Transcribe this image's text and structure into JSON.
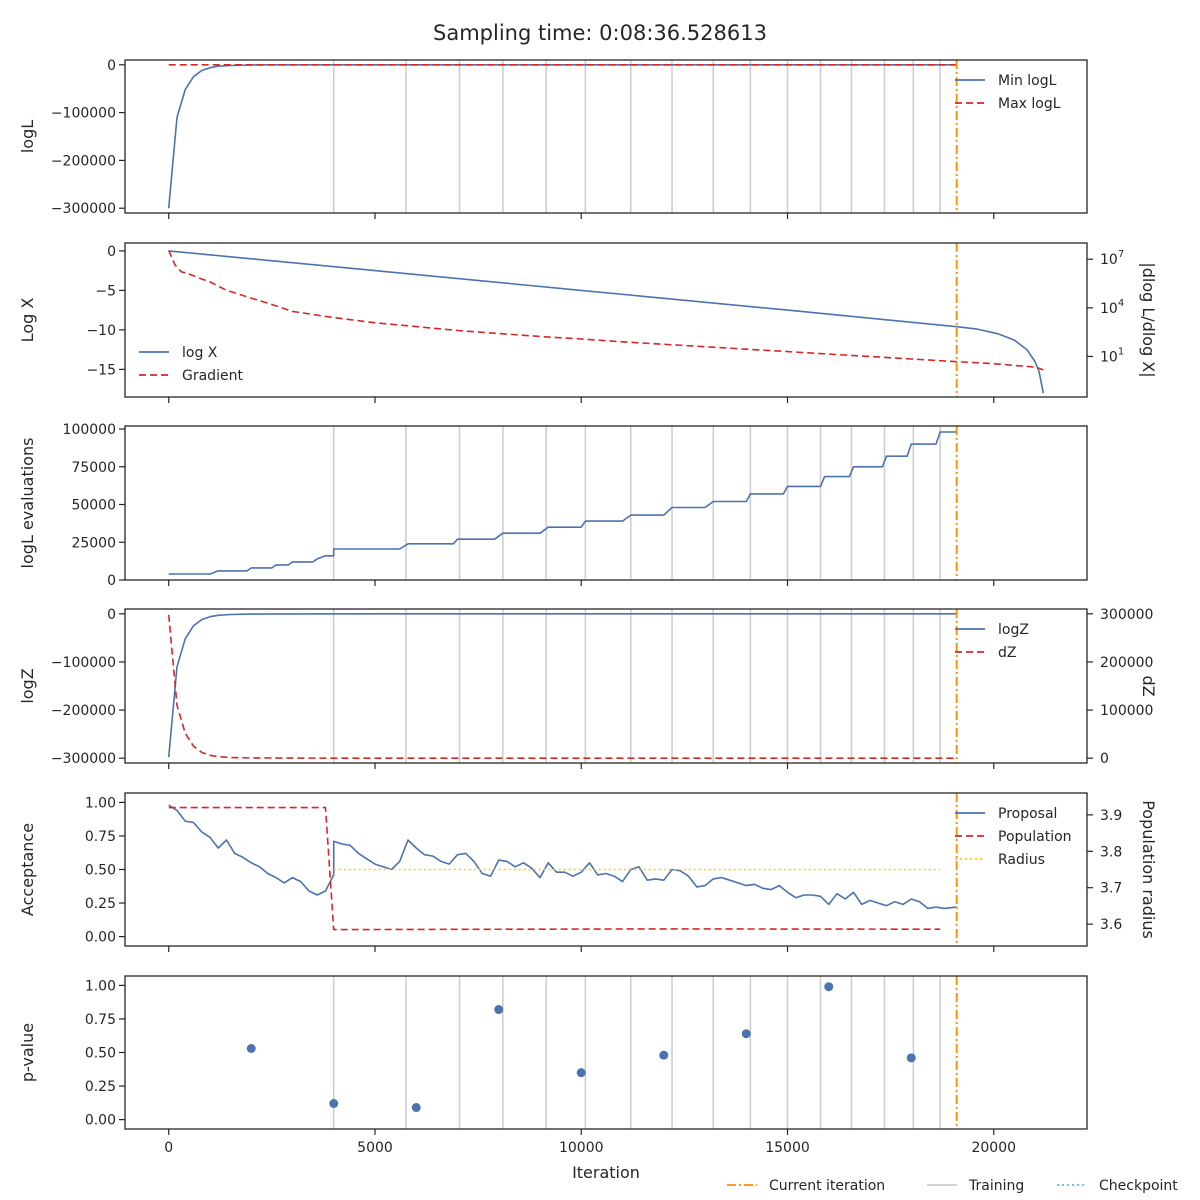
{
  "title": "Sampling time: 0:08:36.528613",
  "colors": {
    "blue": "#4C72B0",
    "red": "#d62728",
    "orange": "#ff8c00",
    "gray": "#cccccc",
    "yellow": "#ffcc00",
    "cyan": "#5bc0de",
    "axis": "#262626"
  },
  "chart_data": [
    {
      "type": "line",
      "panel": "loglikelihood",
      "ylabel": "logL",
      "ylim": [
        -310000,
        10000
      ],
      "yticks": [
        0,
        -100000,
        -200000,
        -300000
      ],
      "ytick_labels": [
        "0",
        "−100000",
        "−200000",
        "−300000"
      ],
      "show_training_lines": true,
      "legend": "upper-right",
      "series": [
        {
          "name": "Min logL",
          "style": "solid",
          "color": "blue",
          "x": [
            0,
            200,
            400,
            600,
            800,
            1000,
            1200,
            1500,
            2000,
            3000,
            5000,
            19100
          ],
          "y": [
            -300000,
            -110000,
            -52000,
            -25000,
            -12000,
            -6000,
            -3000,
            -1500,
            -500,
            -100,
            -10,
            0
          ]
        },
        {
          "name": "Max logL",
          "style": "dashed",
          "color": "red",
          "x": [
            0,
            19100
          ],
          "y": [
            0,
            0
          ]
        }
      ]
    },
    {
      "type": "line",
      "panel": "logX",
      "ylabel": "Log X",
      "ylim": [
        -18.5,
        1
      ],
      "yticks": [
        0,
        -5,
        -10,
        -15
      ],
      "ytick_labels": [
        "0",
        "−5",
        "−10",
        "−15"
      ],
      "y2label": "|dlog L/dlog X|",
      "y2scale": "log",
      "y2ticks": [
        10,
        10000,
        10000000
      ],
      "y2tick_labels": [
        "10^1",
        "10^4",
        "10^7"
      ],
      "y2lim_log10": [
        -1.5,
        8.0
      ],
      "show_training_lines": false,
      "legend": "lower-left",
      "series": [
        {
          "name": "log X",
          "style": "solid",
          "color": "blue",
          "axis": "left",
          "x": [
            0,
            5000,
            10000,
            15000,
            19100,
            19600,
            20100,
            20500,
            20800,
            21000,
            21100,
            21200
          ],
          "y": [
            0,
            -2.5,
            -5.0,
            -7.5,
            -9.6,
            -9.9,
            -10.5,
            -11.3,
            -12.5,
            -14.0,
            -15.3,
            -18
          ]
        },
        {
          "name": "Gradient",
          "style": "dashed",
          "color": "red",
          "axis": "right",
          "x": [
            0,
            150,
            300,
            500,
            800,
            1000,
            1400,
            2000,
            2500,
            3000,
            4000,
            5000,
            6000,
            7000,
            8000,
            9000,
            10000,
            11000,
            12000,
            13000,
            14000,
            15000,
            16000,
            17000,
            18000,
            19000,
            20000,
            21000,
            21200
          ],
          "y": [
            35000000.0,
            4500000.0,
            1700000.0,
            1200000.0,
            600000.0,
            400000.0,
            120000.0,
            40000.0,
            16000.0,
            6000.0,
            2500.0,
            1200.0,
            700.0,
            400.0,
            260.0,
            170.0,
            120.0,
            80,
            56,
            40,
            28,
            20,
            14,
            10,
            7,
            5,
            3.6,
            2.2,
            1.5
          ]
        }
      ]
    },
    {
      "type": "line",
      "panel": "evaluations",
      "ylabel": "logL evaluations",
      "ylim": [
        0,
        102000
      ],
      "yticks": [
        0,
        25000,
        50000,
        75000,
        100000
      ],
      "ytick_labels": [
        "0",
        "25000",
        "50000",
        "75000",
        "100000"
      ],
      "show_training_lines": true,
      "series": [
        {
          "name": "logL evaluations",
          "style": "solid",
          "color": "blue",
          "x": [
            0,
            1000,
            1200,
            1900,
            2000,
            2500,
            2600,
            2900,
            3000,
            3500,
            3600,
            3800,
            4000,
            4000,
            5600,
            5800,
            6900,
            7000,
            7900,
            8100,
            9000,
            9200,
            10000,
            10100,
            11000,
            11200,
            12000,
            12200,
            13000,
            13200,
            14000,
            14100,
            14900,
            15000,
            15800,
            15900,
            16500,
            16600,
            17300,
            17400,
            17900,
            18000,
            18600,
            18700,
            19100
          ],
          "y": [
            4000,
            4000,
            6000,
            6000,
            8000,
            8000,
            10000,
            10000,
            12000,
            12000,
            14000,
            16000,
            16000,
            20500,
            20500,
            24000,
            24000,
            27000,
            27000,
            31000,
            31000,
            35000,
            35000,
            39000,
            39000,
            43000,
            43000,
            48000,
            48000,
            52000,
            52000,
            57000,
            57000,
            62000,
            62000,
            68500,
            68500,
            75000,
            75000,
            82000,
            82000,
            90000,
            90000,
            98000,
            98000
          ]
        }
      ]
    },
    {
      "type": "line",
      "panel": "evidence",
      "ylabel": "logZ",
      "ylim": [
        -310000,
        10000
      ],
      "yticks": [
        0,
        -100000,
        -200000,
        -300000
      ],
      "ytick_labels": [
        "0",
        "−100000",
        "−200000",
        "−300000"
      ],
      "y2label": "dZ",
      "y2lim": [
        -10000,
        310000
      ],
      "y2ticks": [
        0,
        100000,
        200000,
        300000
      ],
      "y2tick_labels": [
        "0",
        "100000",
        "200000",
        "300000"
      ],
      "show_training_lines": true,
      "legend": "upper-right",
      "series": [
        {
          "name": "logZ",
          "style": "solid",
          "color": "blue",
          "axis": "left",
          "x": [
            0,
            200,
            400,
            600,
            800,
            1000,
            1200,
            1500,
            2000,
            3000,
            5000,
            19100
          ],
          "y": [
            -298000,
            -110000,
            -52000,
            -25000,
            -12000,
            -6000,
            -3000,
            -1500,
            -500,
            -100,
            -10,
            0
          ]
        },
        {
          "name": "dZ",
          "style": "dashed",
          "color": "red",
          "axis": "right",
          "x": [
            0,
            200,
            400,
            600,
            800,
            1000,
            1200,
            1500,
            2000,
            3000,
            5000,
            19100
          ],
          "y": [
            298000,
            110000,
            52000,
            25000,
            12000,
            6000,
            3000,
            1500,
            500,
            100,
            10,
            0
          ]
        }
      ]
    },
    {
      "type": "line",
      "panel": "acceptance",
      "ylabel": "Acceptance",
      "ylim": [
        -0.07,
        1.07
      ],
      "yticks": [
        0.0,
        0.25,
        0.5,
        0.75,
        1.0
      ],
      "ytick_labels": [
        "0.00",
        "0.25",
        "0.50",
        "0.75",
        "1.00"
      ],
      "y2label": "Population radius",
      "y2lim": [
        3.54,
        3.96
      ],
      "y2ticks": [
        3.6,
        3.7,
        3.8,
        3.9
      ],
      "y2tick_labels": [
        "3.6",
        "3.7",
        "3.8",
        "3.9"
      ],
      "show_training_lines": false,
      "legend": "upper-right",
      "series": [
        {
          "name": "Proposal",
          "style": "solid",
          "color": "blue",
          "axis": "left",
          "x": [
            0,
            200,
            400,
            600,
            800,
            1000,
            1200,
            1400,
            1600,
            1800,
            2000,
            2200,
            2400,
            2600,
            2800,
            3000,
            3200,
            3400,
            3600,
            3800,
            4000,
            4000,
            4200,
            4400,
            4600,
            4800,
            5000,
            5200,
            5400,
            5600,
            5800,
            6000,
            6200,
            6400,
            6600,
            6800,
            7000,
            7200,
            7400,
            7600,
            7800,
            8000,
            8200,
            8400,
            8600,
            8800,
            9000,
            9200,
            9400,
            9600,
            9800,
            10000,
            10200,
            10400,
            10600,
            10800,
            11000,
            11200,
            11400,
            11600,
            11800,
            12000,
            12200,
            12400,
            12600,
            12800,
            13000,
            13200,
            13400,
            13600,
            13800,
            14000,
            14200,
            14400,
            14600,
            14800,
            15000,
            15200,
            15400,
            15600,
            15800,
            16000,
            16200,
            16400,
            16600,
            16800,
            17000,
            17200,
            17400,
            17600,
            17800,
            18000,
            18200,
            18400,
            18600,
            18800,
            19100
          ],
          "y": [
            0.98,
            0.94,
            0.86,
            0.85,
            0.78,
            0.74,
            0.66,
            0.72,
            0.62,
            0.59,
            0.55,
            0.52,
            0.47,
            0.44,
            0.4,
            0.44,
            0.41,
            0.34,
            0.31,
            0.34,
            0.46,
            0.71,
            0.69,
            0.68,
            0.62,
            0.58,
            0.54,
            0.52,
            0.5,
            0.56,
            0.72,
            0.66,
            0.61,
            0.6,
            0.56,
            0.54,
            0.61,
            0.62,
            0.56,
            0.47,
            0.45,
            0.57,
            0.56,
            0.52,
            0.55,
            0.51,
            0.44,
            0.55,
            0.48,
            0.48,
            0.45,
            0.48,
            0.55,
            0.46,
            0.47,
            0.45,
            0.41,
            0.5,
            0.52,
            0.42,
            0.43,
            0.42,
            0.5,
            0.49,
            0.45,
            0.37,
            0.38,
            0.43,
            0.44,
            0.42,
            0.4,
            0.38,
            0.39,
            0.36,
            0.35,
            0.38,
            0.33,
            0.29,
            0.31,
            0.31,
            0.3,
            0.24,
            0.32,
            0.28,
            0.33,
            0.24,
            0.27,
            0.25,
            0.23,
            0.26,
            0.24,
            0.28,
            0.26,
            0.21,
            0.22,
            0.21,
            0.22
          ]
        },
        {
          "name": "Population",
          "style": "dashed",
          "color": "red",
          "axis": "right",
          "x": [
            0,
            3800,
            4000,
            4000,
            12000,
            18700
          ],
          "y": [
            3.92,
            3.92,
            3.585,
            3.585,
            3.587,
            3.586
          ]
        },
        {
          "name": "Radius",
          "style": "dotted",
          "color": "yellow",
          "axis": "left",
          "x": [
            4000,
            18700
          ],
          "y": [
            0.5,
            0.5
          ]
        }
      ]
    },
    {
      "type": "scatter",
      "panel": "pvalue",
      "ylabel": "p-value",
      "xlabel": "Iteration",
      "ylim": [
        -0.07,
        1.07
      ],
      "yticks": [
        0.0,
        0.25,
        0.5,
        0.75,
        1.0
      ],
      "ytick_labels": [
        "0.00",
        "0.25",
        "0.50",
        "0.75",
        "1.00"
      ],
      "show_training_lines": true,
      "series": [
        {
          "name": "p-value",
          "color": "blue",
          "x": [
            2000,
            4000,
            6000,
            8000,
            10000,
            12000,
            14000,
            16000,
            18000
          ],
          "y": [
            0.53,
            0.12,
            0.09,
            0.82,
            0.35,
            0.48,
            0.64,
            0.99,
            0.46
          ]
        }
      ]
    }
  ],
  "x_axis": {
    "xlim": [
      -1060,
      22260
    ],
    "ticks": [
      0,
      5000,
      10000,
      15000,
      20000
    ],
    "tick_labels": [
      "0",
      "5000",
      "10000",
      "15000",
      "20000"
    ]
  },
  "current_iteration": 19100,
  "training_iterations": [
    4000,
    5750,
    7050,
    8100,
    9150,
    10100,
    11200,
    12200,
    13200,
    14100,
    15000,
    15800,
    16550,
    17350,
    18050,
    18700
  ],
  "figure_legend": [
    {
      "label": "Current iteration",
      "style": "dashdot",
      "color": "orange"
    },
    {
      "label": "Training",
      "style": "solid",
      "color": "gray"
    },
    {
      "label": "Checkpoint",
      "style": "dotted",
      "color": "cyan"
    }
  ]
}
